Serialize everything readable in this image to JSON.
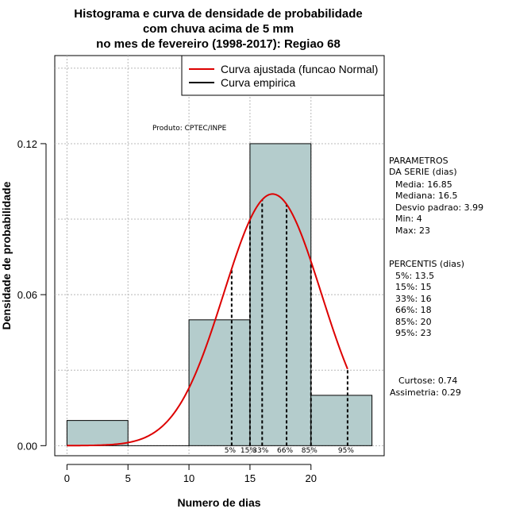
{
  "chart_data": {
    "type": "bar",
    "title": [
      "Histograma e curva de densidade de probabilidade",
      "com chuva acima de 5 mm",
      "no mes de fevereiro (1998-2017): Regiao 68"
    ],
    "xlabel": "Numero de dias",
    "ylabel": "Densidade de probabilidade",
    "xlim": [
      -1,
      26
    ],
    "ylim": [
      -0.004,
      0.155
    ],
    "x_ticks": [
      0,
      5,
      10,
      15,
      20
    ],
    "y_ticks": [
      0.0,
      0.06,
      0.12
    ],
    "y_tick_labels": [
      "0.00",
      "0.06",
      "0.12"
    ],
    "bins": [
      {
        "start": 0,
        "end": 5,
        "density": 0.01
      },
      {
        "start": 5,
        "end": 10,
        "density": 0.0
      },
      {
        "start": 10,
        "end": 15,
        "density": 0.05
      },
      {
        "start": 15,
        "end": 20,
        "density": 0.12
      },
      {
        "start": 20,
        "end": 25,
        "density": 0.02
      }
    ],
    "normal_fit": {
      "mean": 16.85,
      "sd": 3.99,
      "x_range": [
        0,
        23
      ],
      "color": "#dd0000"
    },
    "percentiles": [
      {
        "label": "5%",
        "x": 13.5
      },
      {
        "label": "15%",
        "x": 15
      },
      {
        "label": "33%",
        "x": 16
      },
      {
        "label": "66%",
        "x": 18
      },
      {
        "label": "85%",
        "x": 20
      },
      {
        "label": "95%",
        "x": 23
      }
    ],
    "legend": [
      {
        "label": "Curva ajustada (funcao Normal)",
        "color": "#dd0000"
      },
      {
        "label": "Curva empirica",
        "color": "#000000"
      }
    ],
    "product_label": "Produto: CPTEC/INPE",
    "grid": true,
    "colors": {
      "bar_fill": "#b4cccc",
      "grid": "#b8b8b8"
    }
  },
  "sidebar": {
    "parametros": [
      "PARAMETROS",
      "DA SERIE (dias)",
      "Media: 16.85",
      "Mediana: 16.5",
      "Desvio padrao: 3.99",
      "Min: 4",
      "Max: 23"
    ],
    "percentis": [
      "PERCENTIS (dias)",
      "5%: 13.5",
      "15%: 15",
      "33%: 16",
      "66%: 18",
      "85%: 20",
      "95%: 23"
    ],
    "stats": [
      "Curtose: 0.74",
      "Assimetria: 0.29"
    ]
  }
}
